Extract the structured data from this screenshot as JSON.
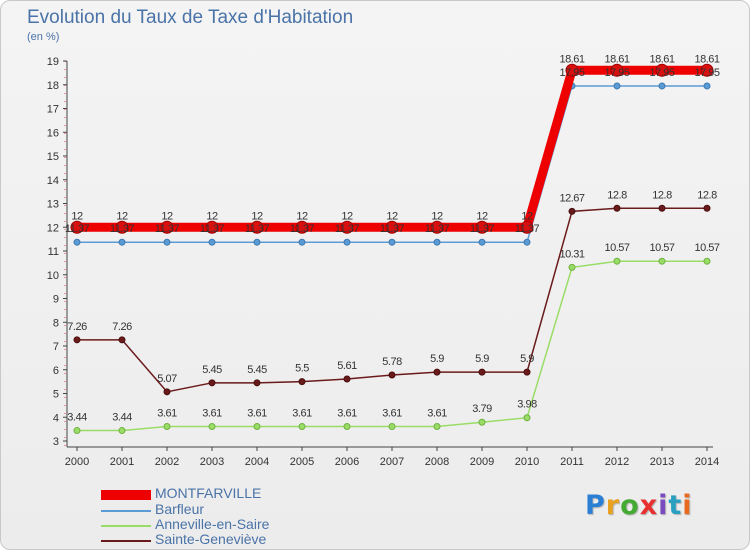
{
  "header": {
    "title": "Evolution du Taux de Taxe d'Habitation",
    "unit": "(en %)"
  },
  "logo": {
    "text": "Proxiti"
  },
  "colors": {
    "MONTFARVILLE": "#ee0000",
    "Barfleur": "#5b9bd5",
    "Anneville-en-Saire": "#99dd66",
    "Sainte-Geneviève": "#6a1a1a"
  },
  "chart_data": {
    "type": "line",
    "title": "Evolution du Taux de Taxe d'Habitation",
    "ylabel": "(en %)",
    "xlabel": "",
    "ylim": [
      3,
      19
    ],
    "yticks": [
      3,
      4,
      5,
      6,
      7,
      8,
      9,
      10,
      11,
      12,
      13,
      14,
      15,
      16,
      17,
      18,
      19
    ],
    "grid": false,
    "legend": "bottom-left",
    "categories": [
      "2000",
      "2001",
      "2002",
      "2003",
      "2004",
      "2005",
      "2006",
      "2007",
      "2008",
      "2009",
      "2010",
      "2011",
      "2012",
      "2013",
      "2014"
    ],
    "series": [
      {
        "name": "MONTFARVILLE",
        "values": [
          12,
          12,
          12,
          12,
          12,
          12,
          12,
          12,
          12,
          12,
          12,
          18.61,
          18.61,
          18.61,
          18.61
        ],
        "labels": [
          "12",
          "12",
          "12",
          "12",
          "12",
          "12",
          "12",
          "12",
          "12",
          "12",
          "12",
          "18.61",
          "18.61",
          "18.61",
          "18.61"
        ]
      },
      {
        "name": "Barfleur",
        "values": [
          11.37,
          11.37,
          11.37,
          11.37,
          11.37,
          11.37,
          11.37,
          11.37,
          11.37,
          11.37,
          11.37,
          17.95,
          17.95,
          17.95,
          17.95
        ],
        "labels": [
          "11.37",
          "11.37",
          "11.37",
          "11.37",
          "11.37",
          "11.37",
          "11.37",
          "11.37",
          "11.37",
          "11.37",
          "11.37",
          "17.95",
          "17.95",
          "17.95",
          "17.95"
        ]
      },
      {
        "name": "Anneville-en-Saire",
        "values": [
          3.44,
          3.44,
          3.61,
          3.61,
          3.61,
          3.61,
          3.61,
          3.61,
          3.61,
          3.79,
          3.98,
          10.31,
          10.57,
          10.57,
          10.57
        ],
        "labels": [
          "3.44",
          "3.44",
          "3.61",
          "3.61",
          "3.61",
          "3.61",
          "3.61",
          "3.61",
          "3.61",
          "3.79",
          "3.98",
          "10.31",
          "10.57",
          "10.57",
          "10.57"
        ]
      },
      {
        "name": "Sainte-Geneviève",
        "values": [
          7.26,
          7.26,
          5.07,
          5.45,
          5.45,
          5.5,
          5.61,
          5.78,
          5.9,
          5.9,
          5.9,
          12.67,
          12.8,
          12.8,
          12.8
        ],
        "labels": [
          "7.26",
          "7.26",
          "5.07",
          "5.45",
          "5.45",
          "5.5",
          "5.61",
          "5.78",
          "5.9",
          "5.9",
          "5.9",
          "12.67",
          "12.8",
          "12.8",
          "12.8"
        ]
      }
    ]
  }
}
